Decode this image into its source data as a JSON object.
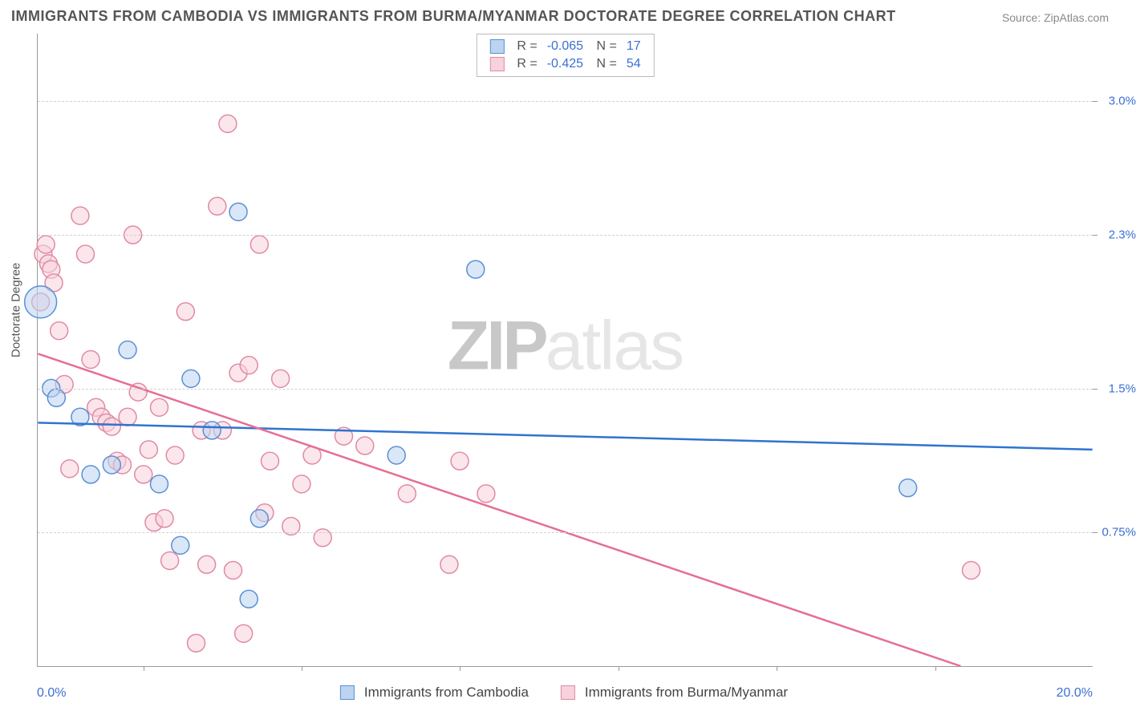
{
  "title": "IMMIGRANTS FROM CAMBODIA VS IMMIGRANTS FROM BURMA/MYANMAR DOCTORATE DEGREE CORRELATION CHART",
  "source": "Source: ZipAtlas.com",
  "watermark": {
    "part1": "ZIP",
    "part2": "atlas"
  },
  "y_axis_title": "Doctorate Degree",
  "x_axis": {
    "min_label": "0.0%",
    "max_label": "20.0%",
    "min": 0.0,
    "max": 20.0
  },
  "y_axis": {
    "ticks": [
      {
        "v": 0.75,
        "label": "0.75%"
      },
      {
        "v": 1.5,
        "label": "1.5%"
      },
      {
        "v": 2.3,
        "label": "2.3%"
      },
      {
        "v": 3.0,
        "label": "3.0%"
      }
    ],
    "min": 0.05,
    "max": 3.35
  },
  "x_ticks_at": [
    2.0,
    5.0,
    8.0,
    11.0,
    14.0,
    17.0
  ],
  "colors": {
    "blue_fill": "#bcd4f0",
    "blue_stroke": "#5a8fd6",
    "blue_line": "#2f74d0",
    "pink_fill": "#f7d2dc",
    "pink_stroke": "#e08aa3",
    "pink_line": "#e56f91",
    "grid": "#d0d0d0",
    "axis": "#999999",
    "text_dark": "#555555",
    "text_blue": "#3b6fd4"
  },
  "marker_radius": 11,
  "marker_opacity": 0.55,
  "series": [
    {
      "name": "Immigrants from Cambodia",
      "short": "cambodia",
      "color_fill": "#bcd4f0",
      "color_stroke": "#5a8fd6",
      "R": "-0.065",
      "N": "17",
      "trend": {
        "x1": 0.0,
        "y1": 1.32,
        "x2": 20.0,
        "y2": 1.18
      },
      "points": [
        {
          "x": 0.05,
          "y": 1.95,
          "r": 20
        },
        {
          "x": 0.25,
          "y": 1.5,
          "r": 11
        },
        {
          "x": 0.35,
          "y": 1.45,
          "r": 11
        },
        {
          "x": 1.0,
          "y": 1.05,
          "r": 11
        },
        {
          "x": 1.7,
          "y": 1.7,
          "r": 11
        },
        {
          "x": 2.3,
          "y": 1.0,
          "r": 11
        },
        {
          "x": 2.7,
          "y": 0.68,
          "r": 11
        },
        {
          "x": 2.9,
          "y": 1.55,
          "r": 11
        },
        {
          "x": 3.3,
          "y": 1.28,
          "r": 11
        },
        {
          "x": 3.8,
          "y": 2.42,
          "r": 11
        },
        {
          "x": 4.0,
          "y": 0.4,
          "r": 11
        },
        {
          "x": 4.2,
          "y": 0.82,
          "r": 11
        },
        {
          "x": 6.8,
          "y": 1.15,
          "r": 11
        },
        {
          "x": 8.3,
          "y": 2.12,
          "r": 11
        },
        {
          "x": 16.5,
          "y": 0.98,
          "r": 11
        },
        {
          "x": 0.8,
          "y": 1.35,
          "r": 11
        },
        {
          "x": 1.4,
          "y": 1.1,
          "r": 11
        }
      ]
    },
    {
      "name": "Immigrants from Burma/Myanmar",
      "short": "burma",
      "color_fill": "#f7d2dc",
      "color_stroke": "#e08aa3",
      "R": "-0.425",
      "N": "54",
      "trend": {
        "x1": 0.0,
        "y1": 1.68,
        "x2": 17.5,
        "y2": 0.05
      },
      "points": [
        {
          "x": 0.1,
          "y": 2.2
        },
        {
          "x": 0.15,
          "y": 2.25
        },
        {
          "x": 0.2,
          "y": 2.15
        },
        {
          "x": 0.25,
          "y": 2.12
        },
        {
          "x": 0.3,
          "y": 2.05
        },
        {
          "x": 0.05,
          "y": 1.95
        },
        {
          "x": 0.4,
          "y": 1.8
        },
        {
          "x": 0.8,
          "y": 2.4
        },
        {
          "x": 0.9,
          "y": 2.2
        },
        {
          "x": 1.0,
          "y": 1.65
        },
        {
          "x": 1.1,
          "y": 1.4
        },
        {
          "x": 1.2,
          "y": 1.35
        },
        {
          "x": 1.3,
          "y": 1.32
        },
        {
          "x": 1.4,
          "y": 1.3
        },
        {
          "x": 1.5,
          "y": 1.12
        },
        {
          "x": 1.6,
          "y": 1.1
        },
        {
          "x": 1.7,
          "y": 1.35
        },
        {
          "x": 1.8,
          "y": 2.3
        },
        {
          "x": 1.9,
          "y": 1.48
        },
        {
          "x": 2.0,
          "y": 1.05
        },
        {
          "x": 2.1,
          "y": 1.18
        },
        {
          "x": 2.2,
          "y": 0.8
        },
        {
          "x": 2.3,
          "y": 1.4
        },
        {
          "x": 2.4,
          "y": 0.82
        },
        {
          "x": 2.5,
          "y": 0.6
        },
        {
          "x": 2.6,
          "y": 1.15
        },
        {
          "x": 2.8,
          "y": 1.9
        },
        {
          "x": 3.0,
          "y": 0.17
        },
        {
          "x": 3.1,
          "y": 1.28
        },
        {
          "x": 3.2,
          "y": 0.58
        },
        {
          "x": 3.4,
          "y": 2.45
        },
        {
          "x": 3.5,
          "y": 1.28
        },
        {
          "x": 3.6,
          "y": 2.88
        },
        {
          "x": 3.7,
          "y": 0.55
        },
        {
          "x": 3.8,
          "y": 1.58
        },
        {
          "x": 4.0,
          "y": 1.62
        },
        {
          "x": 4.2,
          "y": 2.25
        },
        {
          "x": 4.3,
          "y": 0.85
        },
        {
          "x": 4.4,
          "y": 1.12
        },
        {
          "x": 4.6,
          "y": 1.55
        },
        {
          "x": 4.8,
          "y": 0.78
        },
        {
          "x": 5.0,
          "y": 1.0
        },
        {
          "x": 5.2,
          "y": 1.15
        },
        {
          "x": 5.4,
          "y": 0.72
        },
        {
          "x": 5.8,
          "y": 1.25
        },
        {
          "x": 6.2,
          "y": 1.2
        },
        {
          "x": 7.0,
          "y": 0.95
        },
        {
          "x": 7.8,
          "y": 0.58
        },
        {
          "x": 8.0,
          "y": 1.12
        },
        {
          "x": 8.5,
          "y": 0.95
        },
        {
          "x": 3.9,
          "y": 0.22
        },
        {
          "x": 17.7,
          "y": 0.55
        },
        {
          "x": 0.5,
          "y": 1.52
        },
        {
          "x": 0.6,
          "y": 1.08
        }
      ]
    }
  ],
  "legend_bottom": {
    "item1": "Immigrants from Cambodia",
    "item2": "Immigrants from Burma/Myanmar"
  }
}
